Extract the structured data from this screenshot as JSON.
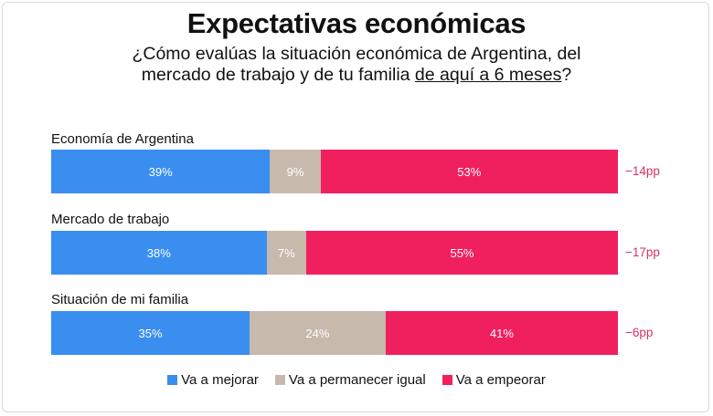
{
  "chart_data": {
    "type": "bar",
    "orientation": "horizontal",
    "stacked": true,
    "title": "Expectativas económicas",
    "subtitle_parts": [
      "¿Cómo evalúas la situación económica de Argentina, del",
      "mercado de trabajo y de tu familia ",
      "de aquí a 6 meses",
      "?"
    ],
    "categories": [
      "Economía de Argentina",
      "Mercado de trabajo",
      "Situación de mi familia"
    ],
    "series": [
      {
        "name": "Va a mejorar",
        "color": "#3a8ef0",
        "values": [
          39,
          38,
          35
        ],
        "labels": [
          "39%",
          "38%",
          "35%"
        ]
      },
      {
        "name": "Va a permanecer igual",
        "color": "#c8b9ad",
        "values": [
          9,
          7,
          24
        ],
        "labels": [
          "9%",
          "7%",
          "24%"
        ]
      },
      {
        "name": "Va a empeorar",
        "color": "#f0205f",
        "values": [
          53,
          55,
          41
        ],
        "labels": [
          "53%",
          "55%",
          "41%"
        ]
      }
    ],
    "net": [
      "−14pp",
      "−17pp",
      "−6pp"
    ],
    "net_color": "#d6335f",
    "legend_position": "bottom"
  }
}
